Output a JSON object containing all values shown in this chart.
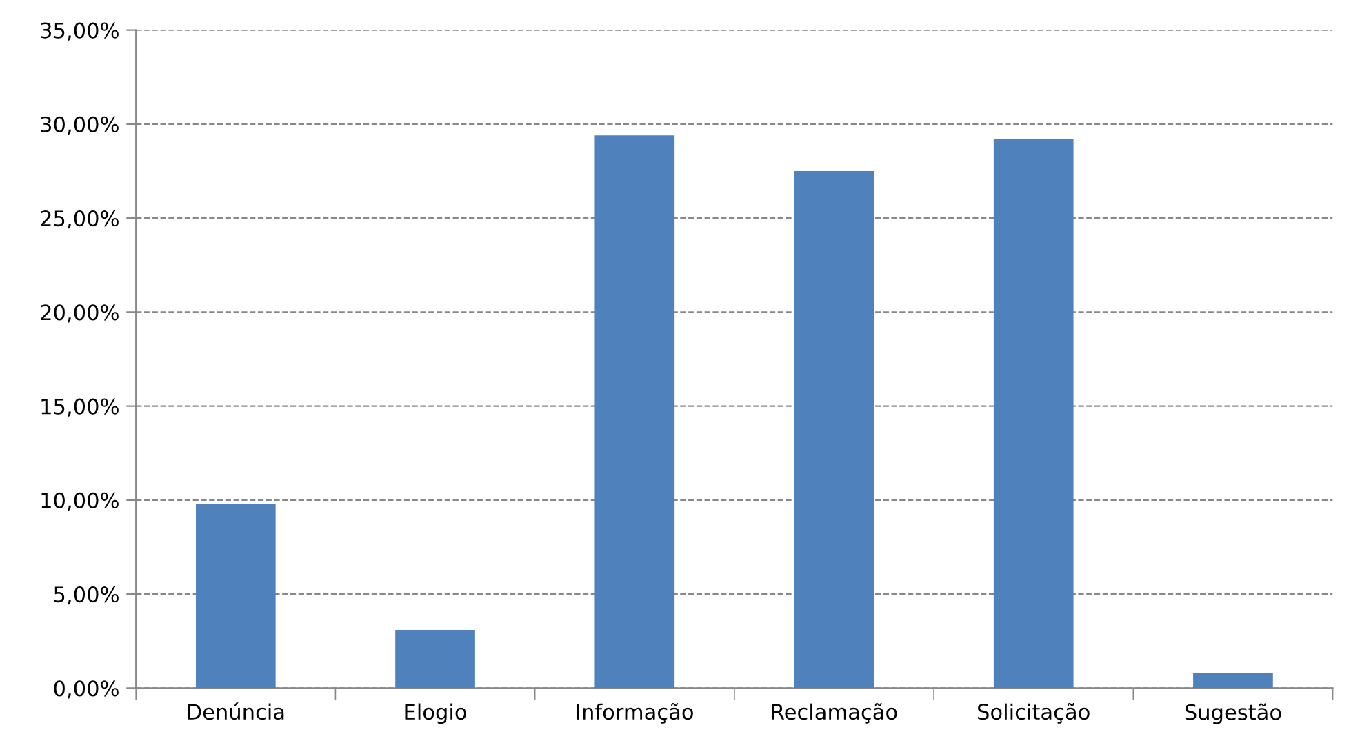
{
  "chart_data": {
    "type": "bar",
    "categories": [
      "Denúncia",
      "Elogio",
      "Informação",
      "Reclamação",
      "Solicitação",
      "Sugestão"
    ],
    "values": [
      9.8,
      3.1,
      29.4,
      27.5,
      29.2,
      0.8
    ],
    "color": "#4f81bd",
    "ylim": [
      0,
      35
    ],
    "yticks": [
      {
        "value": 0,
        "label": "0,00%"
      },
      {
        "value": 5,
        "label": "5,00%"
      },
      {
        "value": 10,
        "label": "10,00%"
      },
      {
        "value": 15,
        "label": "15,00%"
      },
      {
        "value": 20,
        "label": "20,00%"
      },
      {
        "value": 25,
        "label": "25,00%"
      },
      {
        "value": 30,
        "label": "30,00%"
      },
      {
        "value": 35,
        "label": "35,00%"
      }
    ],
    "grid": "y",
    "line_style": "dashed"
  }
}
